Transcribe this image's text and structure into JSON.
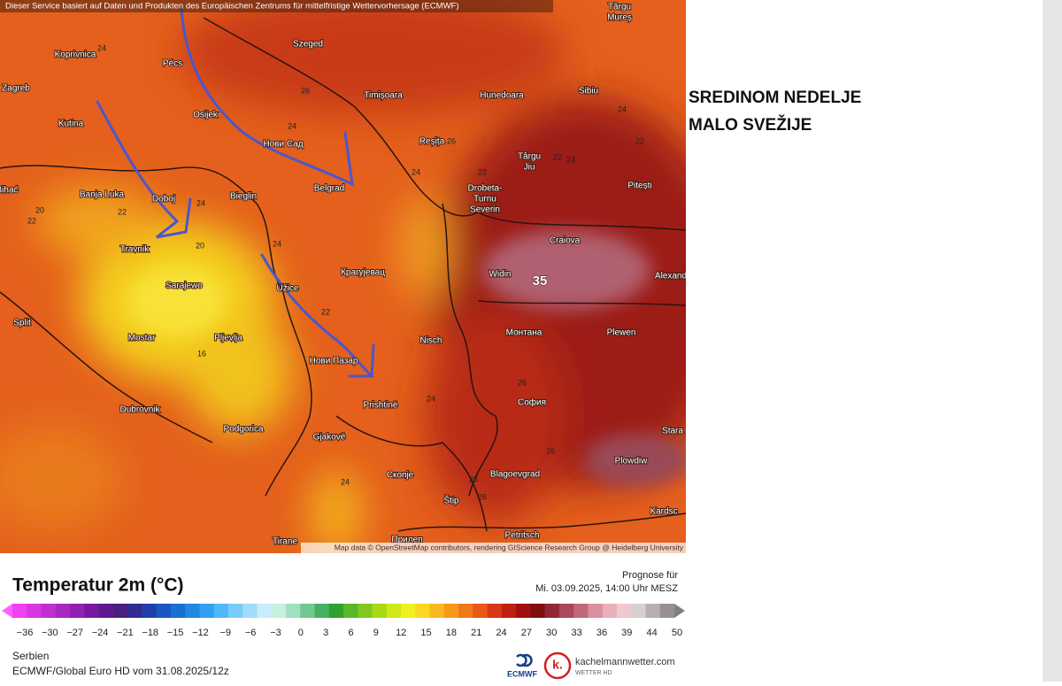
{
  "map": {
    "header": "Dieser Service basiert auf Daten und Produkten des Europäischen Zentrums für mittelfristige Wettervorhersage (ECMWF)",
    "places": [
      "Târgu",
      "Mureș",
      "Koprivnica",
      "Pécs",
      "Szeged",
      "Zagreb",
      "Osijek",
      "Timișoara",
      "Hunedoara",
      "Sibiu",
      "Kutina",
      "Нови Сад",
      "Reșița",
      "Târgu",
      "Jiu",
      "Pitești",
      "Bihać",
      "Banja Luka",
      "Doboj",
      "Bieglin",
      "Belgrad",
      "Drobeta-",
      "Turnu",
      "Severin",
      "Craiova",
      "Travnik",
      "Widin",
      "Alexand",
      "Sarajewo",
      "Užice",
      "Крагујевац",
      "Split",
      "Mostar",
      "Pljevlja",
      "Nisch",
      "Монтана",
      "Plewen",
      "Нови Пазар",
      "Dubrovnik",
      "Prishtinë",
      "София",
      "Stara",
      "Podgorica",
      "Gjakovë",
      "Plowdiw",
      "Скопје",
      "Blagoevgrad",
      "Štip",
      "Kardsc",
      "Tirane",
      "Прилеп",
      "Petritsch"
    ],
    "contour_labels": [
      "24",
      "26",
      "24",
      "24",
      "26",
      "22",
      "24",
      "22",
      "22",
      "24",
      "20",
      "22",
      "22",
      "24",
      "20",
      "24",
      "22",
      "16",
      "24",
      "26",
      "26",
      "26",
      "26",
      "24"
    ],
    "max_label": "35",
    "credit": "Map data © OpenStreetMap contributors, rendering GIScience Research Group @ Heidelberg University"
  },
  "annotation": {
    "line1": "SREDINOM NEDELJE",
    "line2": "MALO SVEŽIJE"
  },
  "legend": {
    "title": "Temperatur 2m (°C)",
    "forecast_label": "Prognose für",
    "forecast_time": "Mi. 03.09.2025, 14:00 Uhr MESZ",
    "ticks": [
      "−36",
      "−30",
      "−27",
      "−24",
      "−21",
      "−18",
      "−15",
      "−12",
      "−9",
      "−6",
      "−3",
      "0",
      "3",
      "6",
      "9",
      "12",
      "15",
      "18",
      "21",
      "24",
      "27",
      "30",
      "33",
      "36",
      "39",
      "44",
      "50"
    ],
    "region": "Serbien",
    "model_run": "ECMWF/Global Euro HD vom 31.08.2025/12z"
  },
  "logos": {
    "ecmwf": "ECMWF",
    "kachelmann_mark": "k.",
    "kachelmann_name": "kachelmannwetter.com",
    "kachelmann_tagline": "WETTER HD"
  }
}
